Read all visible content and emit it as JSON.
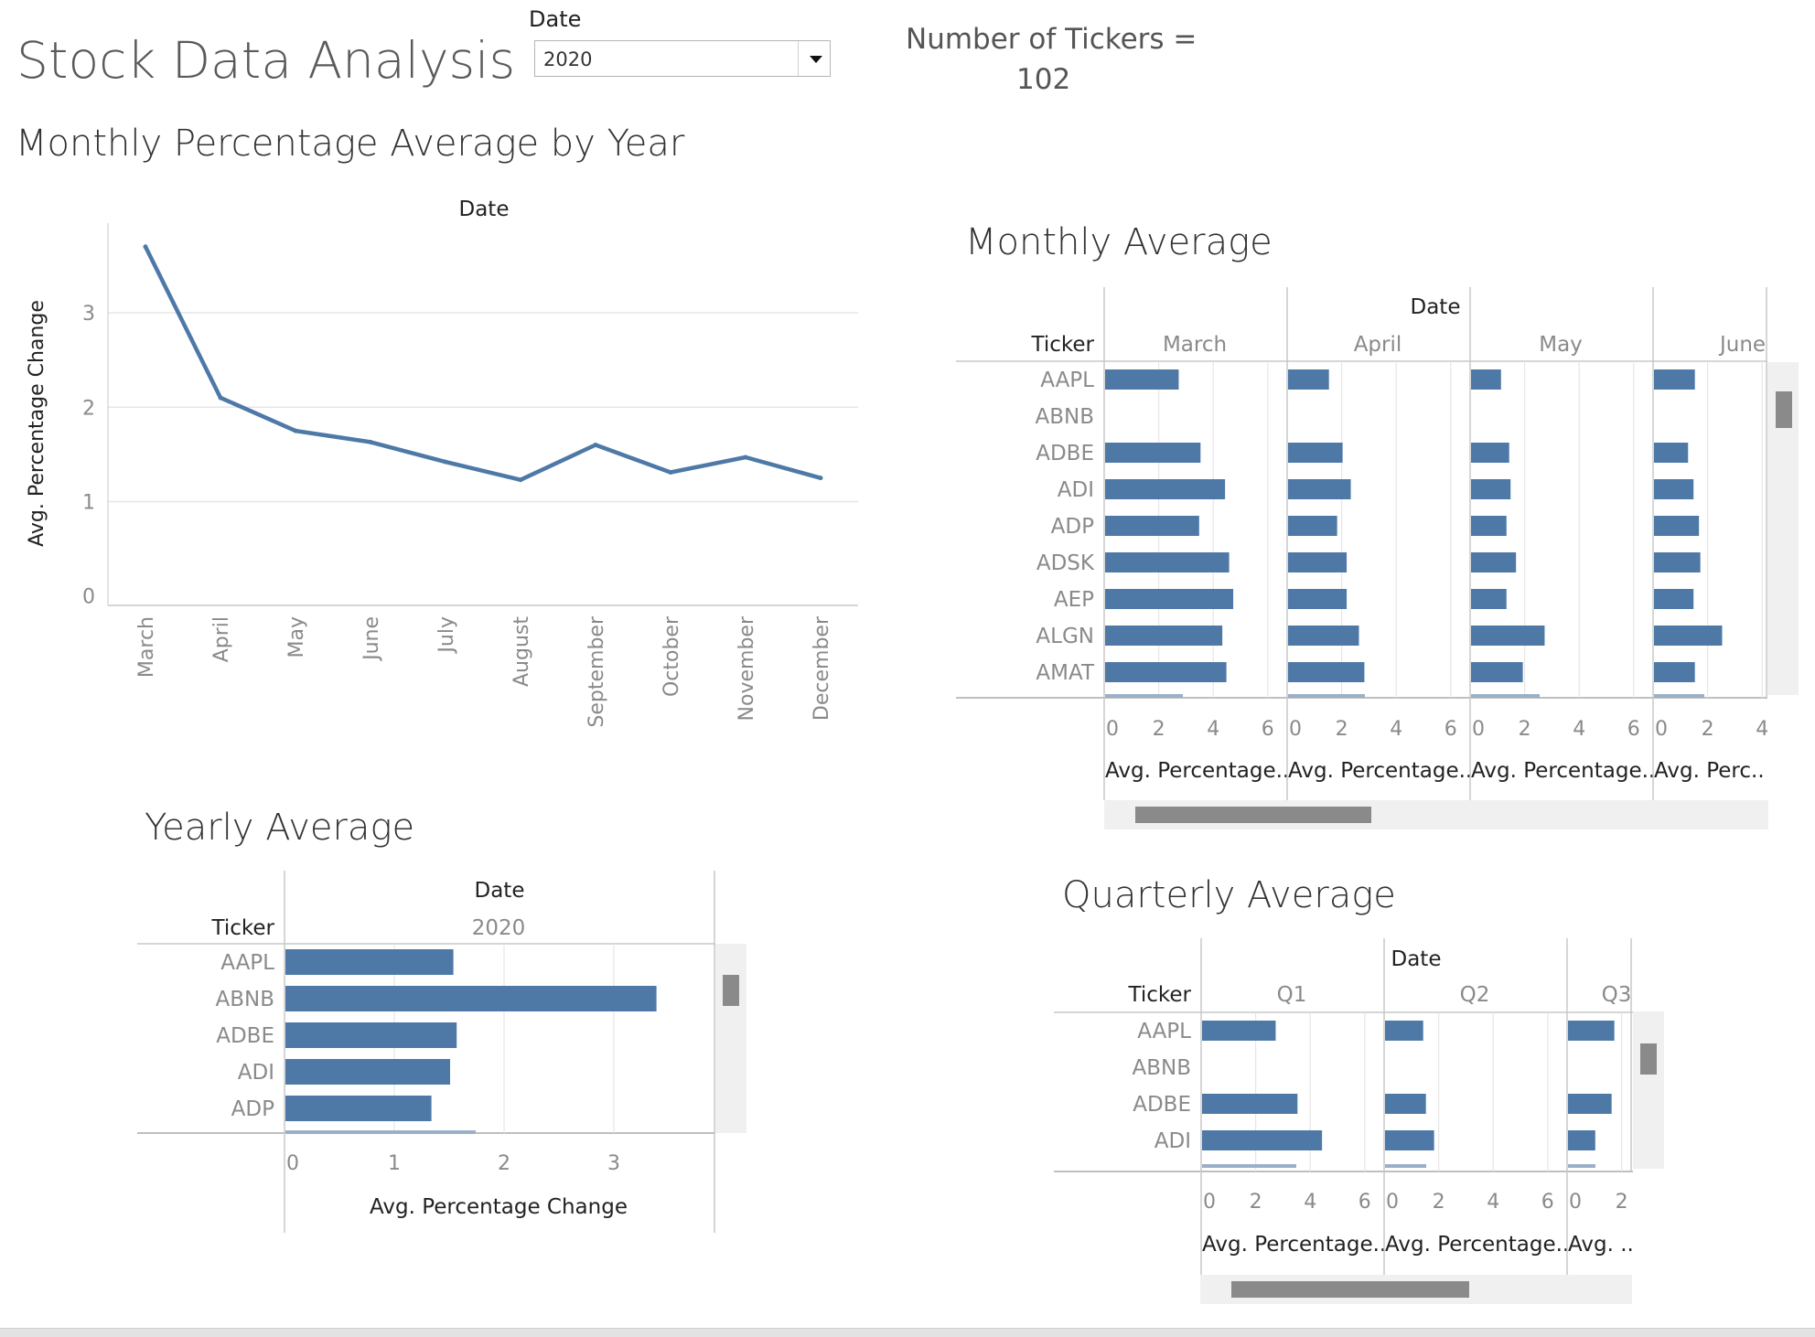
{
  "header": {
    "title": "Stock Data Analysis",
    "filter_label": "Date",
    "filter_value": "2020",
    "ticker_count_label": "Number of Tickers =",
    "ticker_count_value": "102"
  },
  "chart_data": [
    {
      "type": "line",
      "title": "Monthly Percentage Average by Year",
      "column_header": "Date",
      "ylabel": "Avg. Percentage Change",
      "x": [
        "March",
        "April",
        "May",
        "June",
        "July",
        "August",
        "September",
        "October",
        "November",
        "December"
      ],
      "values": [
        3.7,
        2.1,
        1.75,
        1.63,
        1.42,
        1.23,
        1.6,
        1.31,
        1.47,
        1.25
      ],
      "yticks": [
        0,
        1,
        2,
        3
      ],
      "ylim": [
        -0.1,
        3.95
      ],
      "grid": true,
      "color": "#4e79a7"
    },
    {
      "type": "bar",
      "title": "Monthly Average",
      "column_header": "Date",
      "row_header": "Ticker",
      "orientation": "horizontal",
      "xlabel": "Avg. Percentage..",
      "tickers": [
        "AAPL",
        "ABNB",
        "ADBE",
        "ADI",
        "ADP",
        "ADSK",
        "AEP",
        "ALGN",
        "AMAT"
      ],
      "panels": [
        {
          "name": "March",
          "xticks": [
            "0",
            "2",
            "4",
            "6"
          ],
          "axis_label": "Avg. Percentage..",
          "values": [
            2.7,
            0,
            3.5,
            4.4,
            3.45,
            4.55,
            4.7,
            4.3,
            4.45
          ]
        },
        {
          "name": "April",
          "xticks": [
            "0",
            "2",
            "4",
            "6"
          ],
          "axis_label": "Avg. Percentage..",
          "values": [
            1.5,
            0,
            2.0,
            2.3,
            1.8,
            2.15,
            2.15,
            2.6,
            2.8
          ]
        },
        {
          "name": "May",
          "xticks": [
            "0",
            "2",
            "4",
            "6"
          ],
          "axis_label": "Avg. Percentage..",
          "values": [
            1.1,
            0,
            1.4,
            1.45,
            1.3,
            1.65,
            1.3,
            2.7,
            1.9
          ]
        },
        {
          "name": "June",
          "xticks": [
            "0",
            "2",
            "4"
          ],
          "axis_label": "Avg. Perc..",
          "values": [
            1.5,
            0,
            1.25,
            1.45,
            1.65,
            1.7,
            1.45,
            2.5,
            1.5
          ]
        }
      ],
      "color": "#4e79a7"
    },
    {
      "type": "bar",
      "title": "Yearly Average",
      "column_header": "Date",
      "row_header": "Ticker",
      "orientation": "horizontal",
      "panel": "2020",
      "xlabel": "Avg. Percentage Change",
      "tickers": [
        "AAPL",
        "ABNB",
        "ADBE",
        "ADI",
        "ADP"
      ],
      "values": [
        1.53,
        3.38,
        1.56,
        1.5,
        1.33
      ],
      "xticks": [
        0,
        1,
        2,
        3
      ],
      "color": "#4e79a7"
    },
    {
      "type": "bar",
      "title": "Quarterly Average",
      "column_header": "Date",
      "row_header": "Ticker",
      "orientation": "horizontal",
      "tickers": [
        "AAPL",
        "ABNB",
        "ADBE",
        "ADI"
      ],
      "panels": [
        {
          "name": "Q1",
          "xticks": [
            "0",
            "2",
            "4",
            "6"
          ],
          "axis_label": "Avg. Percentage..",
          "values": [
            2.7,
            0,
            3.5,
            4.4
          ]
        },
        {
          "name": "Q2",
          "xticks": [
            "0",
            "2",
            "4",
            "6"
          ],
          "axis_label": "Avg. Percentage..",
          "values": [
            1.4,
            0,
            1.5,
            1.8
          ]
        },
        {
          "name": "Q3",
          "xticks": [
            "0",
            "2"
          ],
          "axis_label": "Avg. ..",
          "values": [
            1.7,
            0,
            1.6,
            1.0
          ]
        }
      ],
      "color": "#4e79a7"
    }
  ]
}
